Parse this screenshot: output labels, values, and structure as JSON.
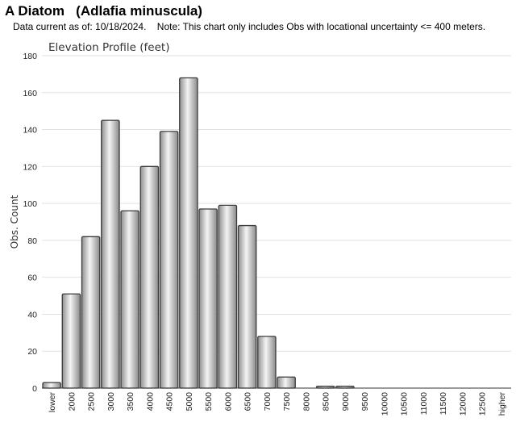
{
  "page": {
    "title": "A Diatom   (Adlafia minuscula)",
    "note": "Data current as of: 10/18/2024.    Note: This chart only includes Obs with locational uncertainty <= 400 meters."
  },
  "chart_data": {
    "type": "bar",
    "title": "Elevation Profile (feet)",
    "xlabel": "",
    "ylabel": "Obs. Count",
    "ylim": [
      0,
      180
    ],
    "yticks": [
      0,
      20,
      40,
      60,
      80,
      100,
      120,
      140,
      160,
      180
    ],
    "grid": true,
    "legend": "none",
    "bar_color": "#c8c8c8",
    "bar_edge_color": "#3a3a3a",
    "categories": [
      "lower",
      "2000",
      "2500",
      "3000",
      "3500",
      "4000",
      "4500",
      "5000",
      "5500",
      "6000",
      "6500",
      "7000",
      "7500",
      "8000",
      "8500",
      "9000",
      "9500",
      "10000",
      "10500",
      "11000",
      "11500",
      "12000",
      "12500",
      "higher"
    ],
    "values": [
      3,
      51,
      82,
      145,
      96,
      120,
      139,
      168,
      97,
      99,
      88,
      28,
      6,
      0,
      1,
      1,
      0,
      0,
      0,
      0,
      0,
      0,
      0,
      0
    ]
  }
}
